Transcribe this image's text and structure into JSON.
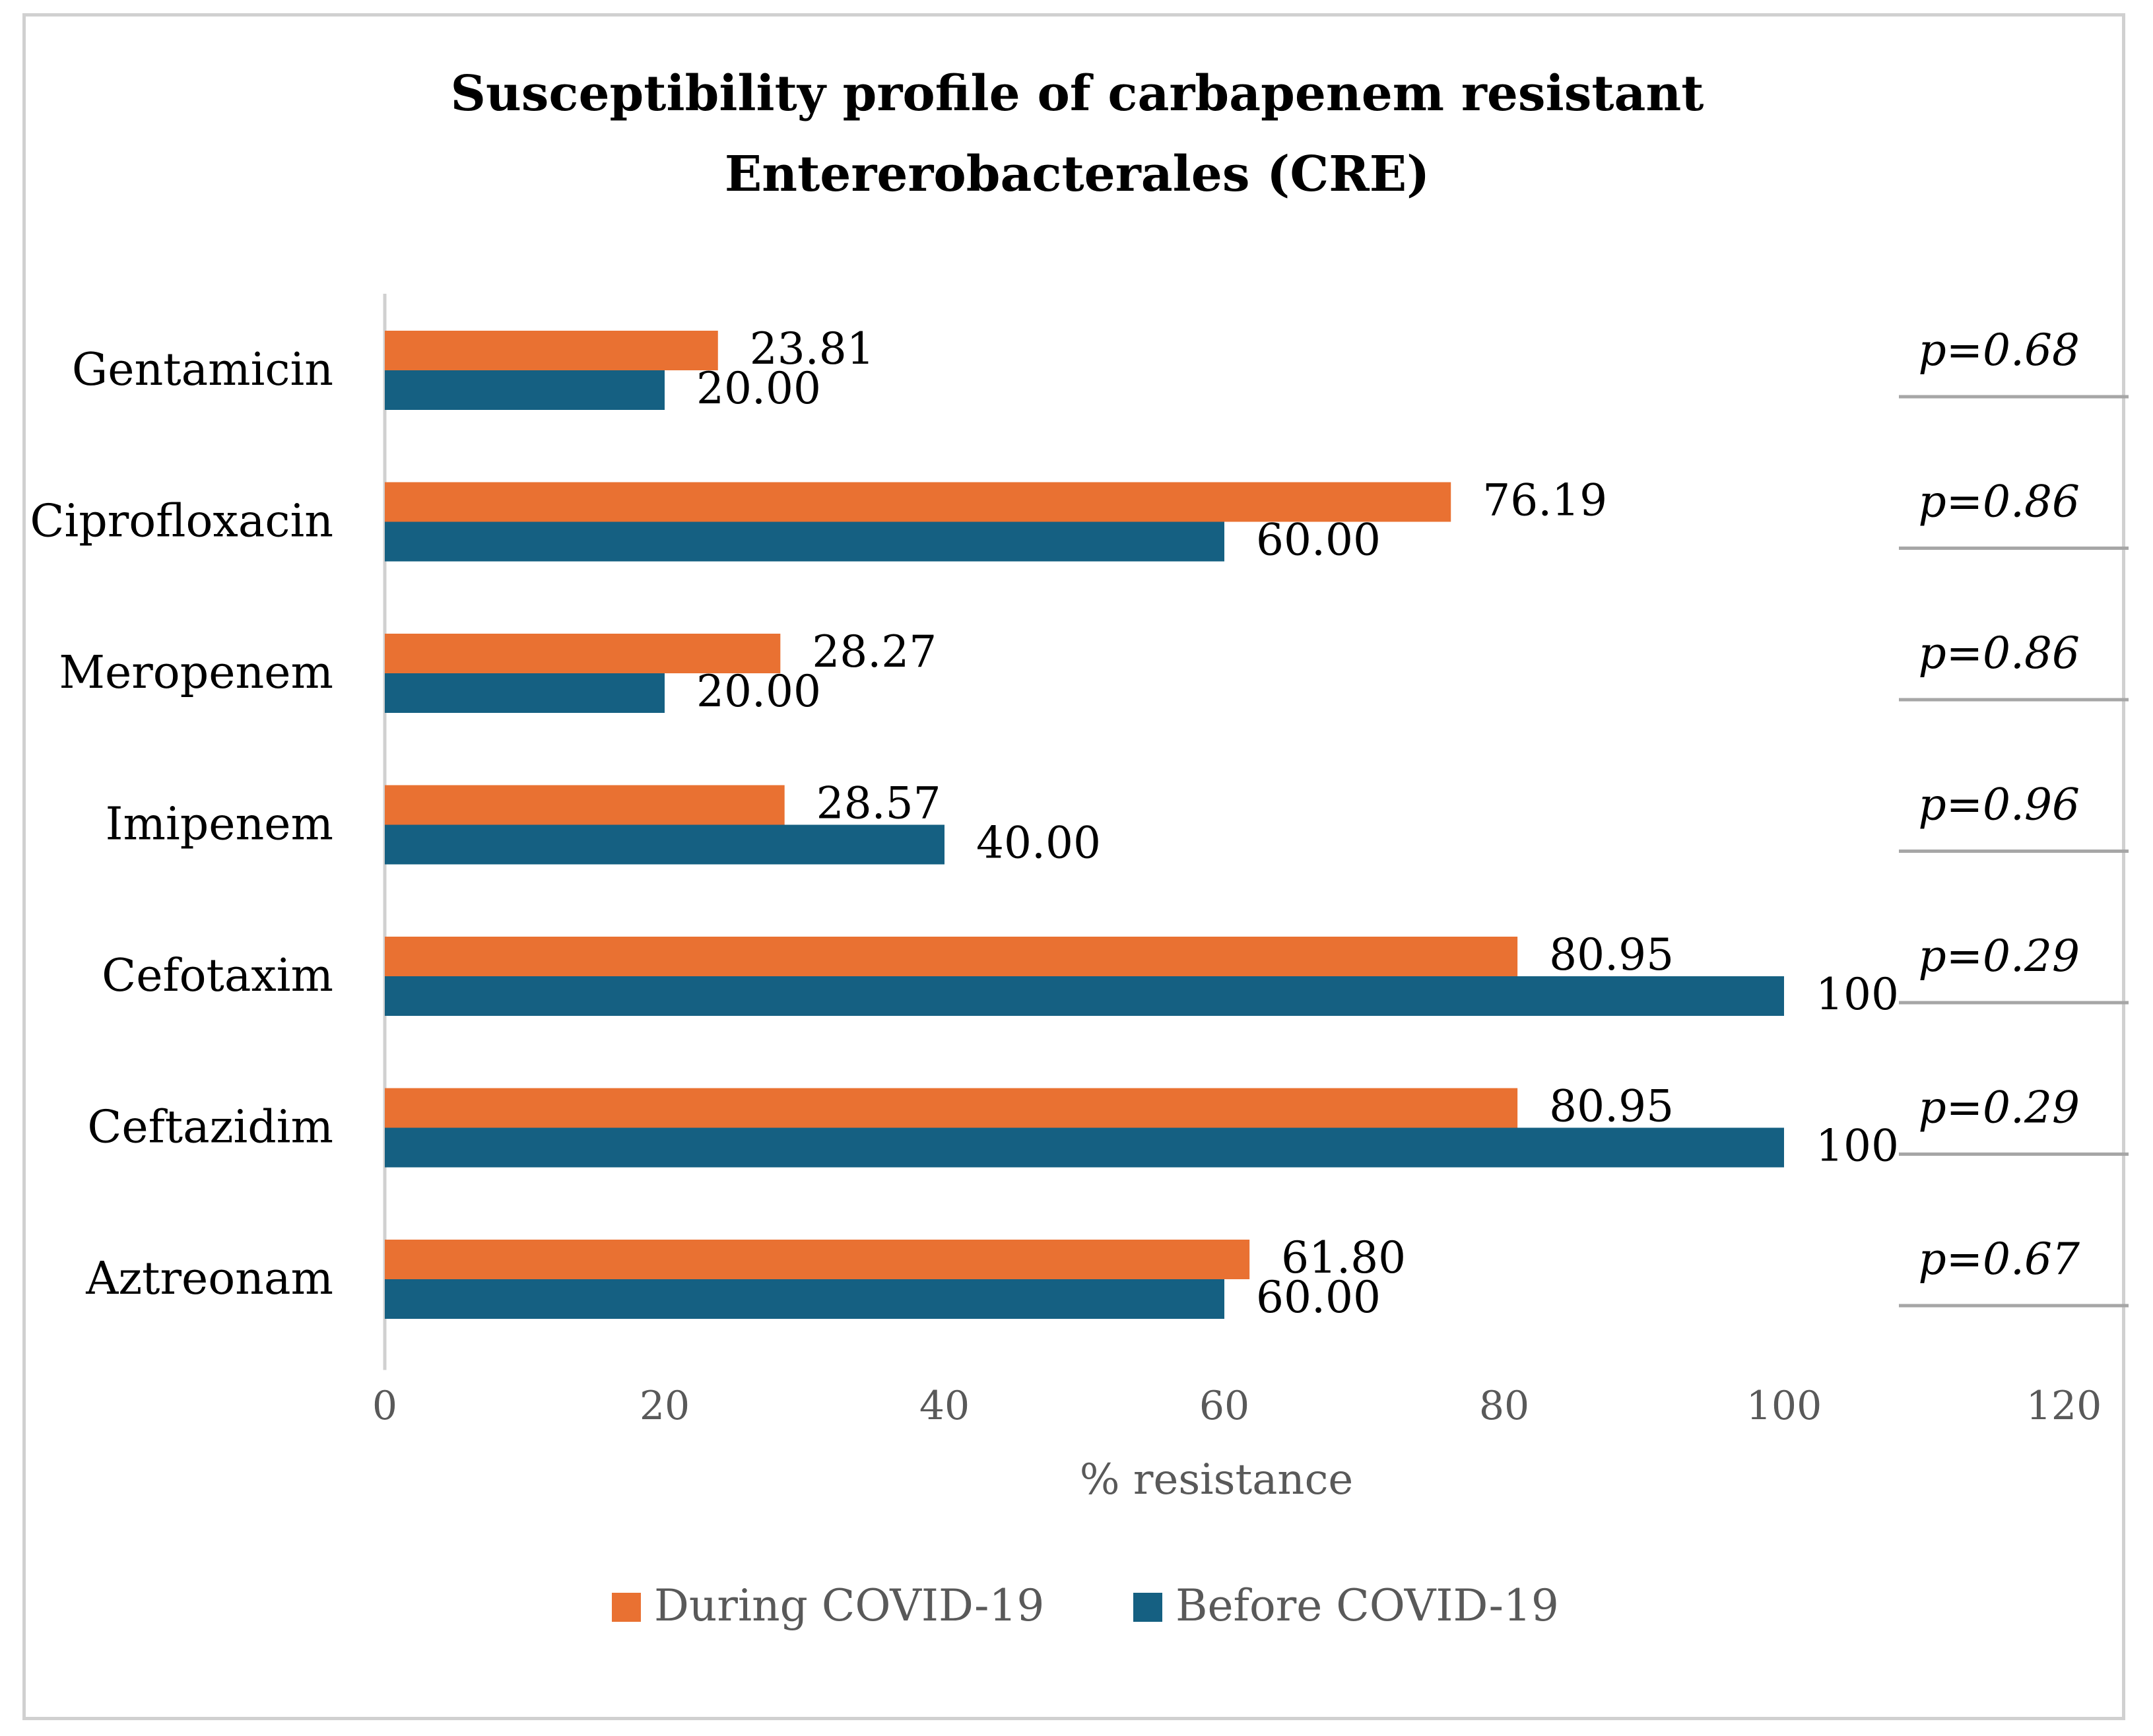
{
  "chart_data": {
    "type": "bar",
    "orientation": "horizontal",
    "title_lines": [
      "Susceptibility profile of carbapenem resistant",
      "Entererobacterales (CRE)"
    ],
    "xlabel": "% resistance",
    "xlim": [
      0,
      120
    ],
    "xticks": [
      0,
      20,
      40,
      60,
      80,
      100,
      120
    ],
    "categories": [
      "Gentamicin",
      "Ciprofloxacin",
      "Meropenem",
      "Imipenem",
      "Cefotaxim",
      "Ceftazidim",
      "Aztreonam"
    ],
    "series": [
      {
        "name": "During COVID-19",
        "color": "#E97132",
        "values": [
          23.81,
          76.19,
          28.27,
          28.57,
          80.95,
          80.95,
          61.8
        ],
        "labels": [
          "23.81",
          "76.19",
          "28.27",
          "28.57",
          "80.95",
          "80.95",
          "61.80"
        ]
      },
      {
        "name": "Before COVID-19",
        "color": "#156082",
        "values": [
          20.0,
          60.0,
          20.0,
          40.0,
          100,
          100,
          60.0
        ],
        "labels": [
          "20.00",
          "60.00",
          "20.00",
          "40.00",
          "100",
          "100",
          "60.00"
        ]
      }
    ],
    "p_values": [
      "p=0.68",
      "p=0.86",
      "p=0.86",
      "p=0.96",
      "p=0.29",
      "p=0.29",
      "p=0.67"
    ],
    "legend_position": "bottom"
  }
}
